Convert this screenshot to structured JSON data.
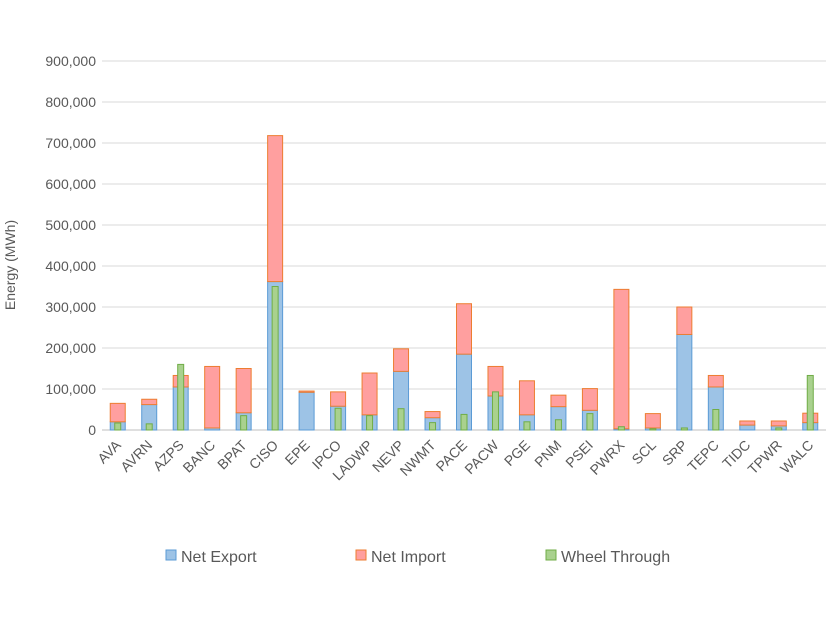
{
  "chart_data": {
    "type": "bar",
    "title": "",
    "xlabel": "",
    "ylabel": "Energy (MWh)",
    "ylim": [
      0,
      900000
    ],
    "yticks": [
      0,
      100000,
      200000,
      300000,
      400000,
      500000,
      600000,
      700000,
      800000,
      900000
    ],
    "ytick_labels": [
      "0",
      "100,000",
      "200,000",
      "300,000",
      "400,000",
      "500,000",
      "600,000",
      "700,000",
      "800,000",
      "900,000"
    ],
    "grid": true,
    "legend_position": "bottom",
    "categories": [
      "AVA",
      "AVRN",
      "AZPS",
      "BANC",
      "BPAT",
      "CISO",
      "EPE",
      "IPCO",
      "LADWP",
      "NEVP",
      "NWMT",
      "PACE",
      "PACW",
      "PGE",
      "PNM",
      "PSEI",
      "PWRX",
      "SCL",
      "SRP",
      "TEPC",
      "TIDC",
      "TPWR",
      "WALC"
    ],
    "stacked_series": [
      {
        "name": "Net Export",
        "color": "#9dc3e6",
        "edge": "#5b9bd5",
        "values": [
          20000,
          62000,
          105000,
          5000,
          42000,
          362000,
          92000,
          58000,
          37000,
          143000,
          30000,
          185000,
          83000,
          37000,
          57000,
          48000,
          3000,
          5000,
          233000,
          105000,
          12000,
          10000,
          18000
        ]
      },
      {
        "name": "Net Import",
        "color": "#ff9f9f",
        "edge": "#ed7d31",
        "values": [
          45000,
          13000,
          28000,
          150000,
          108000,
          356000,
          3000,
          35000,
          102000,
          55000,
          15000,
          123000,
          72000,
          83000,
          28000,
          53000,
          340000,
          35000,
          67000,
          28000,
          10000,
          12000,
          23000
        ]
      }
    ],
    "overlay_series": {
      "name": "Wheel Through",
      "color": "#a9d18e",
      "edge": "#70ad47",
      "values": [
        17000,
        15000,
        160000,
        0,
        35000,
        350000,
        0,
        53000,
        35000,
        52000,
        18000,
        38000,
        93000,
        20000,
        25000,
        40000,
        8000,
        3000,
        5000,
        50000,
        0,
        5000,
        133000
      ]
    },
    "legend": [
      "Net Export",
      "Net Import",
      "Wheel Through"
    ]
  }
}
